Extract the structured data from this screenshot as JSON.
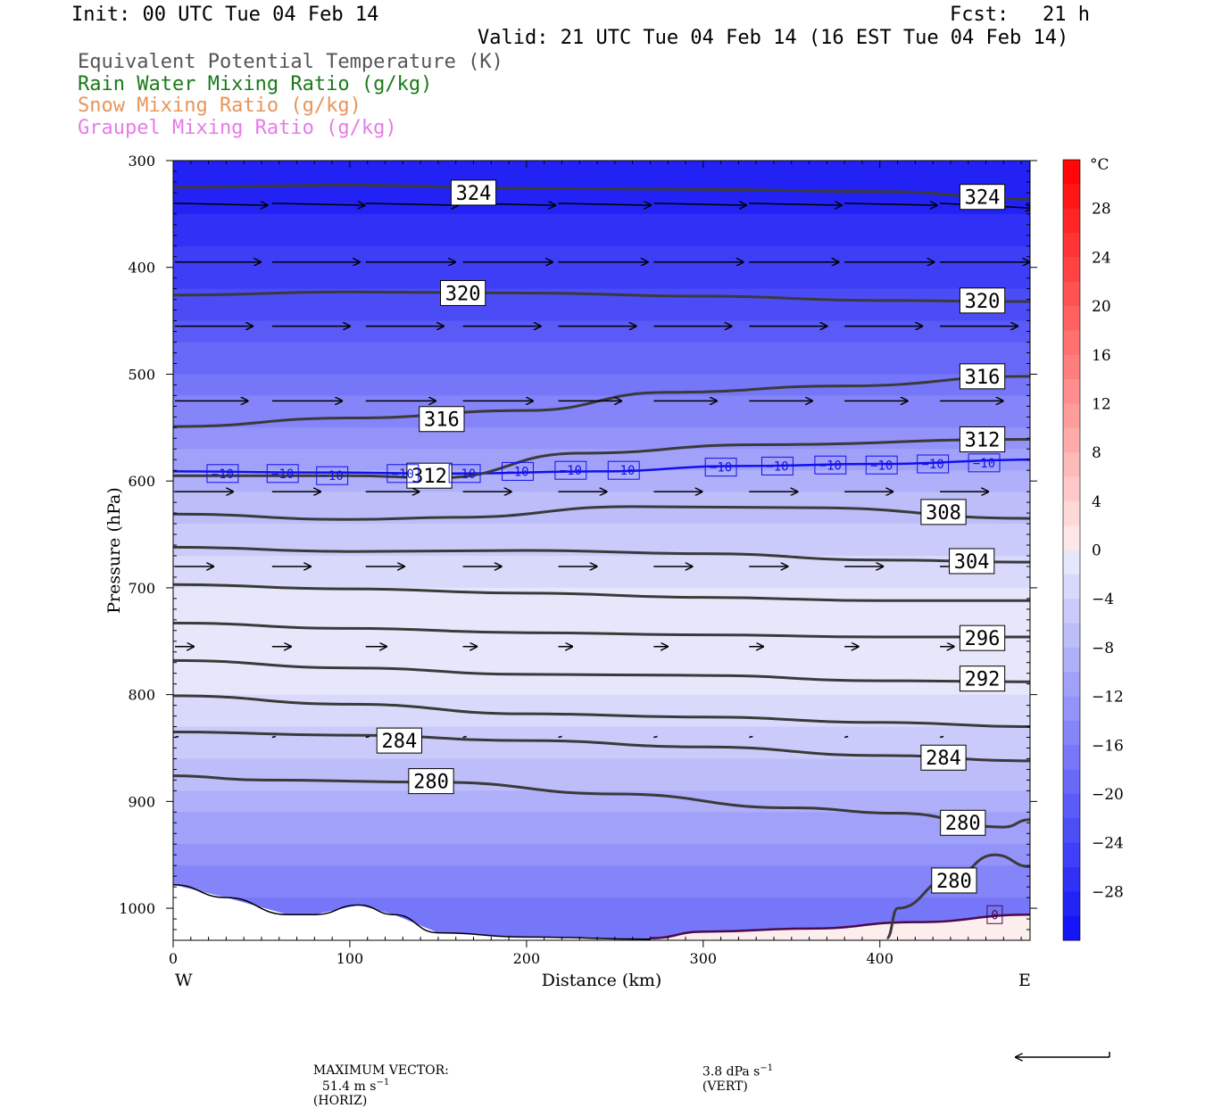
{
  "header": {
    "init": "Init: 00 UTC Tue 04 Feb 14",
    "fcst_label": "Fcst:",
    "fcst_value": "21 h",
    "valid": "Valid: 21 UTC Tue 04 Feb 14 (16 EST Tue 04 Feb 14)"
  },
  "legend": [
    {
      "text": "Equivalent Potential Temperature (K)",
      "color": "#555555"
    },
    {
      "text": "Rain Water Mixing Ratio (g/kg)",
      "color": "#1a7a1a"
    },
    {
      "text": "Snow Mixing Ratio (g/kg)",
      "color": "#e8955a"
    },
    {
      "text": "Graupel Mixing Ratio (g/kg)",
      "color": "#e87ae8"
    }
  ],
  "chart_data": {
    "type": "heatmap",
    "xlabel": "Distance (km)",
    "ylabel": "Pressure (hPa)",
    "xlim": [
      0,
      485
    ],
    "ylim": [
      1030,
      300
    ],
    "x_ticks": [
      0,
      100,
      200,
      300,
      400
    ],
    "y_ticks": [
      300,
      400,
      500,
      600,
      700,
      800,
      900,
      1000
    ],
    "left_end_label": "W",
    "right_end_label": "E",
    "colorbar": {
      "unit": "°C",
      "ticks": [
        28,
        24,
        20,
        16,
        12,
        8,
        4,
        0,
        -4,
        -8,
        -12,
        -16,
        -20,
        -24,
        -28
      ],
      "tick_labels": [
        "28",
        "24",
        "20",
        "16",
        "12",
        "8",
        "4",
        "0",
        "−4",
        "−8",
        "−12",
        "−16",
        "−20",
        "−24",
        "−28"
      ],
      "range": [
        -32,
        32
      ],
      "step": 2
    },
    "temperature_profile": {
      "pressure": [
        300,
        350,
        400,
        450,
        500,
        550,
        600,
        650,
        700,
        750,
        800,
        850,
        900,
        950,
        1000
      ],
      "temp_c": [
        -31,
        -29,
        -26,
        -23,
        -19,
        -15,
        -10,
        -6,
        -3,
        -1,
        -3,
        -6,
        -10,
        -14,
        -18
      ]
    },
    "theta_e_contours": [
      {
        "level": 324,
        "points": [
          [
            0,
            325
          ],
          [
            100,
            323
          ],
          [
            200,
            326
          ],
          [
            300,
            327
          ],
          [
            400,
            329
          ],
          [
            485,
            336
          ]
        ],
        "labels": [
          {
            "text": "324",
            "x": 170,
            "p": 330
          },
          {
            "text": "324",
            "x": 458,
            "p": 334
          }
        ]
      },
      {
        "level": 320,
        "points": [
          [
            0,
            426
          ],
          [
            100,
            423
          ],
          [
            200,
            424
          ],
          [
            300,
            427
          ],
          [
            400,
            431
          ],
          [
            485,
            432
          ]
        ],
        "labels": [
          {
            "text": "320",
            "x": 164,
            "p": 424
          },
          {
            "text": "320",
            "x": 458,
            "p": 431
          }
        ]
      },
      {
        "level": 316,
        "points": [
          [
            0,
            549
          ],
          [
            100,
            541
          ],
          [
            200,
            534
          ],
          [
            280,
            517
          ],
          [
            380,
            511
          ],
          [
            485,
            502
          ]
        ],
        "labels": [
          {
            "text": "316",
            "x": 152,
            "p": 542
          },
          {
            "text": "316",
            "x": 458,
            "p": 502
          }
        ]
      },
      {
        "level": 312,
        "points": [
          [
            0,
            595
          ],
          [
            100,
            595
          ],
          [
            150,
            597
          ],
          [
            230,
            574
          ],
          [
            330,
            566
          ],
          [
            485,
            561
          ]
        ],
        "labels": [
          {
            "text": "312",
            "x": 145,
            "p": 595
          },
          {
            "text": "312",
            "x": 458,
            "p": 561
          }
        ]
      },
      {
        "level": 308,
        "points": [
          [
            0,
            631
          ],
          [
            100,
            636
          ],
          [
            160,
            634
          ],
          [
            260,
            624
          ],
          [
            360,
            625
          ],
          [
            485,
            635
          ]
        ],
        "labels": [
          {
            "text": "308",
            "x": 436,
            "p": 629
          }
        ]
      },
      {
        "level": 304,
        "points": [
          [
            0,
            662
          ],
          [
            100,
            666
          ],
          [
            200,
            665
          ],
          [
            300,
            668
          ],
          [
            400,
            674
          ],
          [
            485,
            676
          ]
        ],
        "labels": [
          {
            "text": "304",
            "x": 452,
            "p": 675
          }
        ]
      },
      {
        "level": 300,
        "points": [
          [
            0,
            697
          ],
          [
            100,
            701
          ],
          [
            200,
            705
          ],
          [
            300,
            709
          ],
          [
            400,
            712
          ],
          [
            485,
            712
          ]
        ],
        "labels": []
      },
      {
        "level": 296,
        "points": [
          [
            0,
            733
          ],
          [
            100,
            738
          ],
          [
            200,
            742
          ],
          [
            300,
            744
          ],
          [
            400,
            746
          ],
          [
            485,
            746
          ]
        ],
        "labels": [
          {
            "text": "296",
            "x": 458,
            "p": 747
          }
        ]
      },
      {
        "level": 292,
        "points": [
          [
            0,
            768
          ],
          [
            100,
            775
          ],
          [
            200,
            781
          ],
          [
            300,
            782
          ],
          [
            400,
            787
          ],
          [
            485,
            788
          ]
        ],
        "labels": [
          {
            "text": "292",
            "x": 458,
            "p": 785
          }
        ]
      },
      {
        "level": 288,
        "points": [
          [
            0,
            801
          ],
          [
            100,
            809
          ],
          [
            200,
            818
          ],
          [
            300,
            821
          ],
          [
            400,
            826
          ],
          [
            485,
            830
          ]
        ],
        "labels": []
      },
      {
        "level": 284,
        "points": [
          [
            0,
            835
          ],
          [
            100,
            838
          ],
          [
            200,
            843
          ],
          [
            300,
            849
          ],
          [
            400,
            857
          ],
          [
            485,
            862
          ]
        ],
        "labels": [
          {
            "text": "284",
            "x": 128,
            "p": 843
          },
          {
            "text": "284",
            "x": 436,
            "p": 859
          }
        ]
      },
      {
        "level": 280,
        "points": [
          [
            0,
            876
          ],
          [
            50,
            880
          ],
          [
            150,
            882
          ],
          [
            250,
            893
          ],
          [
            350,
            906
          ],
          [
            410,
            911
          ],
          [
            470,
            924
          ],
          [
            485,
            917
          ]
        ],
        "labels": [
          {
            "text": "280",
            "x": 146,
            "p": 881
          },
          {
            "text": "280",
            "x": 447,
            "p": 920
          }
        ]
      },
      {
        "level": 280,
        "points": [
          [
            404,
            1028
          ],
          [
            410,
            1000
          ],
          [
            440,
            972
          ],
          [
            465,
            950
          ],
          [
            485,
            961
          ]
        ],
        "labels": [
          {
            "text": "280",
            "x": 442,
            "p": 974
          }
        ]
      }
    ],
    "isotherm_minus10": {
      "points": [
        [
          0,
          591
        ],
        [
          80,
          592
        ],
        [
          160,
          593
        ],
        [
          240,
          591
        ],
        [
          320,
          586
        ],
        [
          400,
          584
        ],
        [
          485,
          580
        ]
      ],
      "labels": [
        {
          "text": "−10",
          "x": 28,
          "p": 593
        },
        {
          "text": "−10",
          "x": 62,
          "p": 593
        },
        {
          "text": "−10",
          "x": 90,
          "p": 595
        },
        {
          "text": "−10",
          "x": 130,
          "p": 593
        },
        {
          "text": "−10",
          "x": 165,
          "p": 593
        },
        {
          "text": "−10",
          "x": 195,
          "p": 591
        },
        {
          "text": "−10",
          "x": 225,
          "p": 590
        },
        {
          "text": "−10",
          "x": 255,
          "p": 590
        },
        {
          "text": "−10",
          "x": 310,
          "p": 587
        },
        {
          "text": "−10",
          "x": 342,
          "p": 586
        },
        {
          "text": "−10",
          "x": 372,
          "p": 585
        },
        {
          "text": "−10",
          "x": 401,
          "p": 585
        },
        {
          "text": "−10",
          "x": 430,
          "p": 584
        },
        {
          "text": "−10",
          "x": 459,
          "p": 583
        }
      ]
    },
    "isotherm_zero": {
      "points": [
        [
          270,
          1028
        ],
        [
          300,
          1022
        ],
        [
          360,
          1019
        ],
        [
          420,
          1013
        ],
        [
          485,
          1006
        ]
      ],
      "labels": [
        {
          "text": "0",
          "x": 465,
          "p": 1006
        }
      ]
    },
    "surface_line": {
      "points": [
        [
          0,
          978
        ],
        [
          30,
          990
        ],
        [
          65,
          1006
        ],
        [
          80,
          1006
        ],
        [
          105,
          997
        ],
        [
          125,
          1006
        ],
        [
          150,
          1023
        ],
        [
          200,
          1027
        ],
        [
          270,
          1029
        ]
      ]
    },
    "wind_vectors": {
      "x_positions": [
        0,
        55,
        108,
        163,
        217,
        271,
        325,
        379,
        433
      ],
      "rows": [
        {
          "p": 340,
          "u": [
            0.95,
            0.95,
            0.95,
            0.95,
            0.95,
            0.95,
            0.95,
            0.95,
            0.95
          ],
          "w": [
            0.02,
            0.02,
            0.02,
            0.02,
            0.02,
            0.02,
            0.02,
            0.02,
            0.05
          ]
        },
        {
          "p": 395,
          "u": [
            0.88,
            0.9,
            0.92,
            0.92,
            0.92,
            0.92,
            0.92,
            0.92,
            0.92
          ],
          "w": [
            0.0,
            0.0,
            0.0,
            0.0,
            0.0,
            0.0,
            0.0,
            0.0,
            0.0
          ]
        },
        {
          "p": 455,
          "u": [
            0.8,
            0.8,
            0.8,
            0.8,
            0.8,
            0.8,
            0.8,
            0.8,
            0.8
          ],
          "w": [
            0.0,
            0.0,
            0.0,
            0.0,
            0.0,
            0.0,
            0.0,
            0.0,
            0.0
          ]
        },
        {
          "p": 525,
          "u": [
            0.75,
            0.72,
            0.72,
            0.72,
            0.65,
            0.65,
            0.65,
            0.65,
            0.65
          ],
          "w": [
            0.0,
            0.0,
            0.0,
            0.0,
            0.0,
            0.0,
            0.0,
            0.0,
            0.0
          ]
        },
        {
          "p": 610,
          "u": [
            0.6,
            0.5,
            0.55,
            0.5,
            0.5,
            0.5,
            0.5,
            0.5,
            0.5
          ],
          "w": [
            0.0,
            0.0,
            0.0,
            0.0,
            0.0,
            0.0,
            0.0,
            0.0,
            0.0
          ]
        },
        {
          "p": 680,
          "u": [
            0.4,
            0.4,
            0.4,
            0.4,
            0.4,
            0.4,
            0.4,
            0.4,
            0.4
          ],
          "w": [
            0.0,
            0.0,
            0.0,
            0.0,
            0.0,
            0.0,
            0.0,
            0.0,
            0.0
          ]
        },
        {
          "p": 755,
          "u": [
            0.2,
            0.2,
            0.22,
            0.15,
            0.15,
            0.15,
            0.15,
            0.15,
            0.15
          ],
          "w": [
            0.0,
            0.0,
            0.0,
            0.0,
            0.0,
            0.0,
            0.0,
            0.0,
            0.0
          ]
        },
        {
          "p": 840,
          "u": [
            0.05,
            0.05,
            0.05,
            0.05,
            0.05,
            0.05,
            0.05,
            0.05,
            0.05
          ],
          "w": [
            0.0,
            0.0,
            0.0,
            0.0,
            0.0,
            0.0,
            0.0,
            0.0,
            0.0
          ]
        }
      ]
    }
  },
  "footer": {
    "max_vector_label": "MAXIMUM VECTOR:",
    "horiz": "51.4 m s",
    "horiz_sup": "−1",
    "horiz_tag": "(HORIZ)",
    "vert": "3.8 dPa s",
    "vert_sup": "−1",
    "vert_tag": "(VERT)"
  }
}
